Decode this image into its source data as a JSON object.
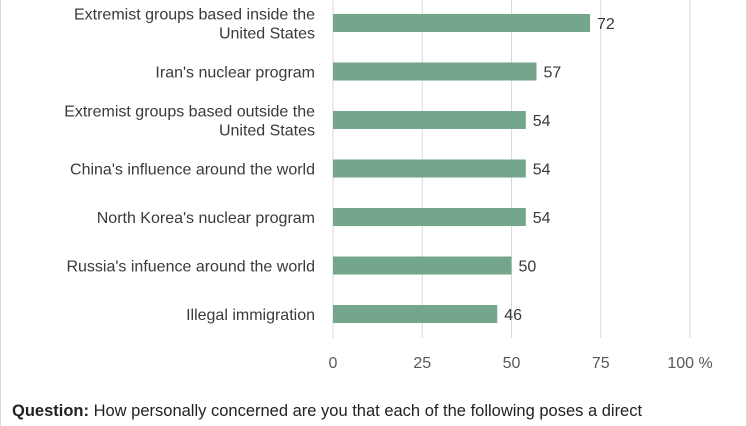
{
  "chart_data": {
    "type": "bar",
    "orientation": "horizontal",
    "categories": [
      [
        "Extremist groups based inside the",
        "United States"
      ],
      [
        "Iran's nuclear program"
      ],
      [
        "Extremist groups based outside the",
        "United States"
      ],
      [
        "China's influence around the world"
      ],
      [
        "North Korea's nuclear program"
      ],
      [
        "Russia's infuence around the world"
      ],
      [
        "Illegal immigration"
      ]
    ],
    "values": [
      72,
      57,
      54,
      54,
      54,
      50,
      46
    ],
    "value_labels": [
      "72",
      "57",
      "54",
      "54",
      "54",
      "50",
      "46"
    ],
    "xlim": [
      0,
      100
    ],
    "xticks": [
      0,
      25,
      50,
      75,
      100
    ],
    "xtick_labels": [
      "0",
      "25",
      "50",
      "75",
      "100 %"
    ],
    "grid": true,
    "bar_color": "#73a68a"
  },
  "footnote": {
    "label": "Question:",
    "text": " How personally concerned are you that each of the following poses a direct"
  }
}
